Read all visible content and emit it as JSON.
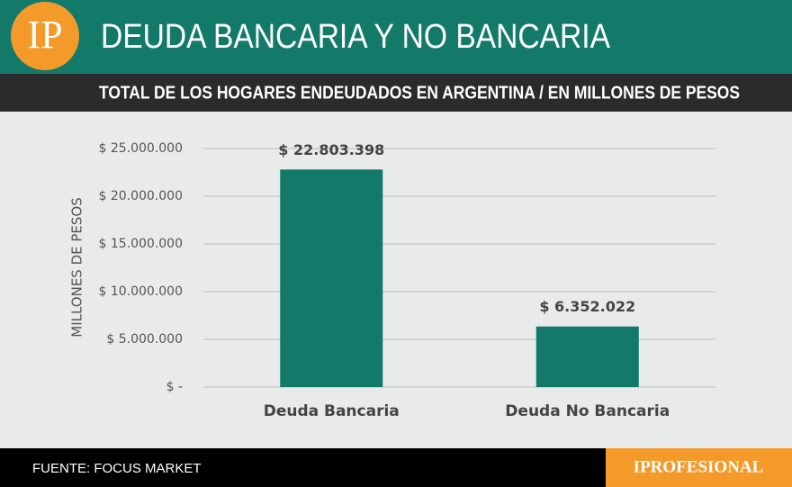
{
  "header": {
    "logo": "IP",
    "title": "DEUDA BANCARIA Y NO BANCARIA",
    "subtitle": "TOTAL DE LOS HOGARES ENDEUDADOS EN ARGENTINA / EN MILLONES DE PESOS"
  },
  "chart_data": {
    "type": "bar",
    "ylabel": "MILLONES DE PESOS",
    "categories": [
      "Deuda Bancaria",
      "Deuda No Bancaria"
    ],
    "values": [
      22803398,
      6352022
    ],
    "value_labels": [
      "$ 22.803.398",
      "$ 6.352.022"
    ],
    "color": "#137a69",
    "ylim": [
      0,
      25000000
    ],
    "yticks": [
      {
        "value": 0,
        "label": "$ -"
      },
      {
        "value": 5000000,
        "label": "$ 5.000.000"
      },
      {
        "value": 10000000,
        "label": "$ 10.000.000"
      },
      {
        "value": 15000000,
        "label": "$ 15.000.000"
      },
      {
        "value": 20000000,
        "label": "$ 20.000.000"
      },
      {
        "value": 25000000,
        "label": "$ 25.000.000"
      }
    ],
    "grid": true
  },
  "footer": {
    "source": "FUENTE: FOCUS MARKET",
    "brand": "IPROFESIONAL"
  }
}
